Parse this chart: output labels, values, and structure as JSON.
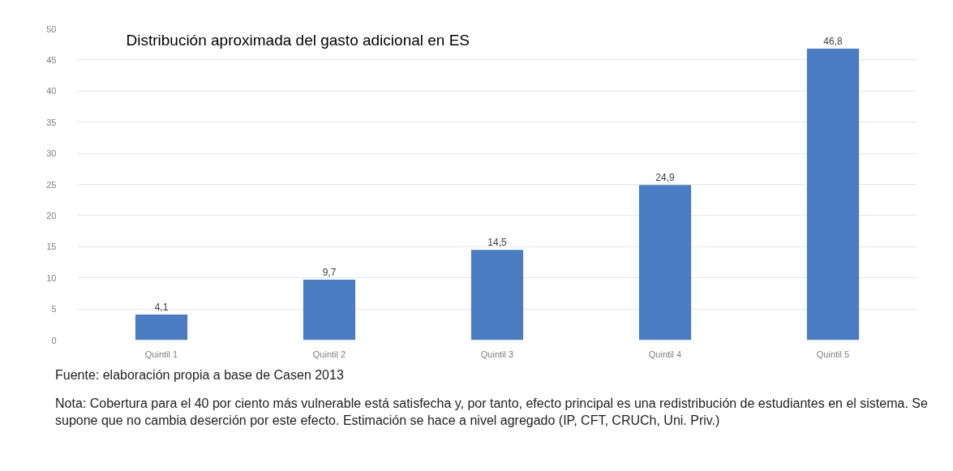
{
  "chart_data": {
    "type": "bar",
    "title": "Distribución aproximada del gasto adicional en ES",
    "categories": [
      "Quintil 1",
      "Quintil 2",
      "Quintil 3",
      "Quintil 4",
      "Quintil 5"
    ],
    "values": [
      4.1,
      9.7,
      14.5,
      24.9,
      46.8
    ],
    "color": "#4a7cc4",
    "value_labels": [
      "4,1",
      "9,7",
      "14,5",
      "24,9",
      "46,8"
    ],
    "ylim": [
      0,
      50
    ],
    "yticks": [
      0,
      5,
      10,
      15,
      20,
      25,
      30,
      35,
      40,
      45,
      50
    ],
    "grid": "y",
    "annotations": [
      "Fuente: elaboración propia a base de Casen 2013",
      "Nota: Cobertura para el 40 por ciento más vulnerable está satisfecha y, por tanto, efecto principal es una redistribución de estudiantes en el sistema. Se supone que no cambia deserción por este efecto. Estimación se hace a nivel agregado (IP, CFT, CRUCh, Uni. Priv.)"
    ]
  }
}
